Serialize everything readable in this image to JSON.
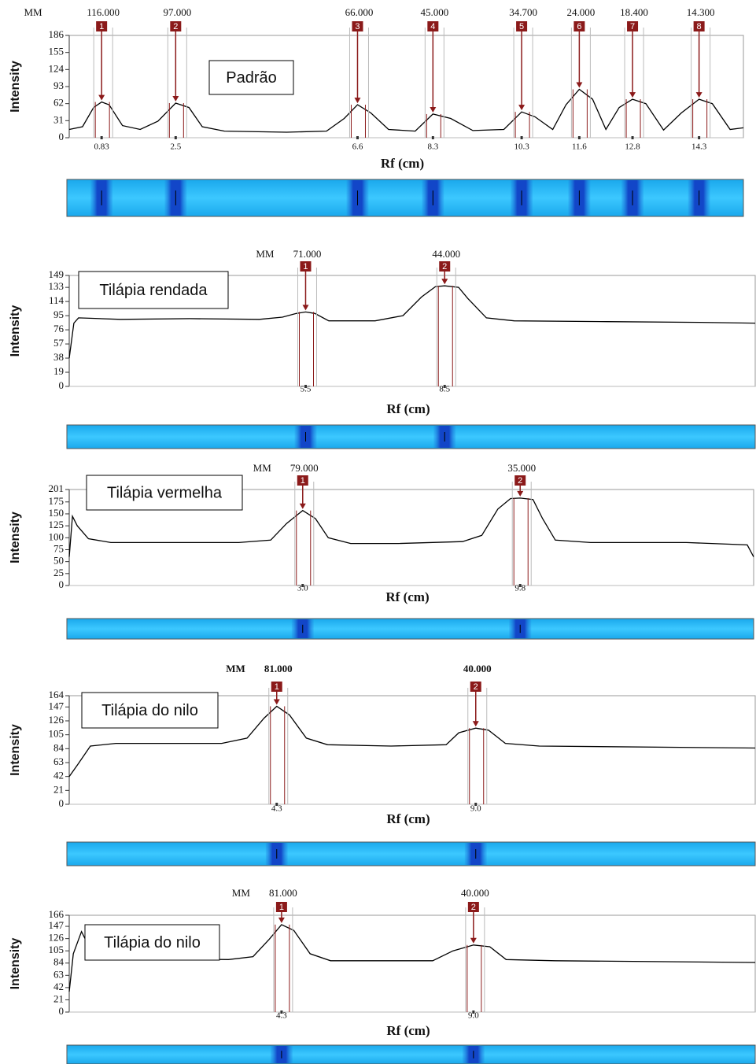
{
  "chart_data": [
    {
      "type": "line",
      "label": "Padrão",
      "ylabel": "Intensity",
      "xlabel": "Rf (cm)",
      "mm_prefix": "MM",
      "color": "#000000",
      "ylim": [
        0,
        186
      ],
      "yticks": [
        0,
        31,
        62,
        93,
        124,
        155,
        186
      ],
      "xlim": [
        0.1,
        15.3
      ],
      "xticks": [
        0.83,
        2.5,
        6.6,
        8.3,
        10.3,
        11.6,
        12.8,
        14.3
      ],
      "peaks": [
        {
          "number": "1",
          "mm": "116.000"
        },
        {
          "number": "2",
          "mm": "97.000"
        },
        {
          "number": "3",
          "mm": "66.000"
        },
        {
          "number": "4",
          "mm": "45.000"
        },
        {
          "number": "5",
          "mm": "34.700"
        },
        {
          "number": "6",
          "mm": "24.000"
        },
        {
          "number": "7",
          "mm": "18.400"
        },
        {
          "number": "8",
          "mm": "14.300"
        }
      ],
      "x": [
        0.1,
        0.4,
        0.65,
        0.83,
        1.0,
        1.3,
        1.7,
        2.1,
        2.5,
        2.8,
        3.1,
        3.6,
        5.0,
        5.9,
        6.3,
        6.6,
        6.9,
        7.3,
        7.9,
        8.3,
        8.7,
        9.2,
        9.9,
        10.3,
        10.6,
        11.0,
        11.3,
        11.6,
        11.9,
        12.2,
        12.5,
        12.8,
        13.1,
        13.5,
        13.9,
        14.3,
        14.6,
        15.0,
        15.3
      ],
      "values": [
        15,
        20,
        55,
        65,
        60,
        22,
        15,
        30,
        63,
        55,
        20,
        12,
        10,
        12,
        35,
        60,
        45,
        15,
        12,
        43,
        35,
        13,
        15,
        47,
        38,
        15,
        60,
        88,
        70,
        15,
        55,
        70,
        62,
        14,
        45,
        70,
        62,
        15,
        18
      ]
    },
    {
      "type": "line",
      "label": "Tilápia rendada",
      "ylabel": "Intensity",
      "xlabel": "Rf (cm)",
      "mm_prefix": "MM",
      "color": "#000000",
      "ylim": [
        0,
        149
      ],
      "yticks": [
        0,
        19,
        38,
        57,
        76,
        95,
        114,
        133,
        149
      ],
      "xlim": [
        0.4,
        15.2
      ],
      "xticks": [
        5.5,
        8.5
      ],
      "peaks": [
        {
          "number": "1",
          "mm": "71.000"
        },
        {
          "number": "2",
          "mm": "44.000"
        }
      ],
      "x": [
        0.4,
        0.5,
        0.6,
        1.5,
        3,
        4.5,
        5.0,
        5.3,
        5.5,
        5.7,
        6.0,
        7.0,
        7.6,
        8.0,
        8.3,
        8.5,
        8.8,
        9.0,
        9.4,
        10,
        12,
        14,
        15.2
      ],
      "values": [
        38,
        85,
        92,
        90,
        91,
        90,
        93,
        98,
        100,
        98,
        88,
        88,
        95,
        120,
        134,
        135,
        133,
        118,
        92,
        88,
        87,
        86,
        85
      ]
    },
    {
      "type": "line",
      "label": "Tilápia vermelha",
      "ylabel": "Intensity",
      "xlabel": "Rf (cm)",
      "mm_prefix": "MM",
      "color": "#000000",
      "ylim": [
        0,
        201
      ],
      "yticks": [
        0,
        25,
        50,
        75,
        100,
        125,
        150,
        175,
        201
      ],
      "xlim": [
        -4.3,
        17.1
      ],
      "xticks": [
        {
          "value": 3,
          "label": "3.0"
        },
        9.8
      ],
      "peaks": [
        {
          "number": "1",
          "mm": "79.000"
        },
        {
          "number": "2",
          "mm": "35.000"
        }
      ],
      "x": [
        -4.3,
        -4.2,
        -4.05,
        -3.7,
        -3.0,
        -1,
        1,
        2.0,
        2.5,
        3.0,
        3.4,
        3.8,
        4.5,
        6,
        8.0,
        8.6,
        9.1,
        9.5,
        9.8,
        10.2,
        10.5,
        10.9,
        12,
        15,
        16.9,
        17.1
      ],
      "values": [
        60,
        145,
        125,
        98,
        90,
        90,
        90,
        95,
        130,
        157,
        140,
        100,
        88,
        88,
        92,
        105,
        160,
        182,
        183,
        180,
        140,
        95,
        90,
        90,
        85,
        60
      ]
    },
    {
      "type": "line",
      "label": "Tilápia do nilo",
      "ylabel": "Intensity",
      "xlabel": "Rf (cm)",
      "mm_prefix": "MM",
      "color": "#000000",
      "ylim": [
        0,
        164
      ],
      "yticks": [
        0,
        21,
        42,
        63,
        84,
        105,
        126,
        147,
        164
      ],
      "xlim": [
        -0.6,
        15.6
      ],
      "xticks": [
        4.3,
        {
          "value": 9,
          "label": "9.0"
        }
      ],
      "peaks": [
        {
          "number": "1",
          "mm": "81.000"
        },
        {
          "number": "2",
          "mm": "40.000"
        }
      ],
      "x": [
        -0.6,
        -0.4,
        -0.1,
        0.5,
        3.0,
        3.6,
        4.0,
        4.3,
        4.6,
        5.0,
        5.5,
        7,
        8.3,
        8.6,
        9.0,
        9.3,
        9.7,
        10.5,
        15.6
      ],
      "values": [
        42,
        60,
        88,
        92,
        92,
        100,
        130,
        148,
        135,
        100,
        90,
        88,
        90,
        108,
        115,
        112,
        92,
        88,
        85
      ]
    },
    {
      "type": "line",
      "label": "Tilápia do nilo",
      "ylabel": "Intensity",
      "xlabel": "Rf (cm)",
      "mm_prefix": "MM",
      "color": "#000000",
      "ylim": [
        0,
        166
      ],
      "yticks": [
        0,
        21,
        42,
        63,
        84,
        105,
        126,
        147,
        166
      ],
      "xlim": [
        -0.9,
        15.9
      ],
      "xticks": [
        4.3,
        {
          "value": 9,
          "label": "9.0"
        }
      ],
      "peaks": [
        {
          "number": "1",
          "mm": "81.000"
        },
        {
          "number": "2",
          "mm": "40.000"
        }
      ],
      "x": [
        -0.9,
        -0.8,
        -0.6,
        -0.4,
        0,
        3.0,
        3.6,
        4.0,
        4.3,
        4.6,
        5.0,
        5.5,
        8.0,
        8.5,
        9.0,
        9.4,
        9.8,
        11,
        15.9
      ],
      "values": [
        35,
        100,
        138,
        110,
        92,
        90,
        95,
        125,
        150,
        140,
        100,
        88,
        88,
        105,
        115,
        112,
        90,
        88,
        85
      ]
    }
  ]
}
